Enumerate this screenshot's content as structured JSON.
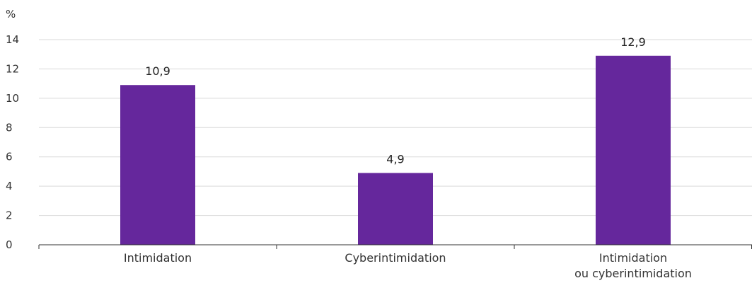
{
  "chart_data": {
    "type": "bar",
    "ylabel": "%",
    "categories": [
      [
        "Intimidation"
      ],
      [
        "Cyberintimidation"
      ],
      [
        "Intimidation",
        "ou cyberintimidation"
      ]
    ],
    "values": [
      10.9,
      4.9,
      12.9
    ],
    "data_labels": [
      "10,9",
      "4,9",
      "12,9"
    ],
    "ylim": [
      0,
      14
    ],
    "yticks": [
      0,
      2,
      4,
      6,
      8,
      10,
      12,
      14
    ],
    "grid": true,
    "colors": {
      "bar": "#65279c",
      "grid": "#d9d9d9",
      "axis": "#333333"
    }
  }
}
